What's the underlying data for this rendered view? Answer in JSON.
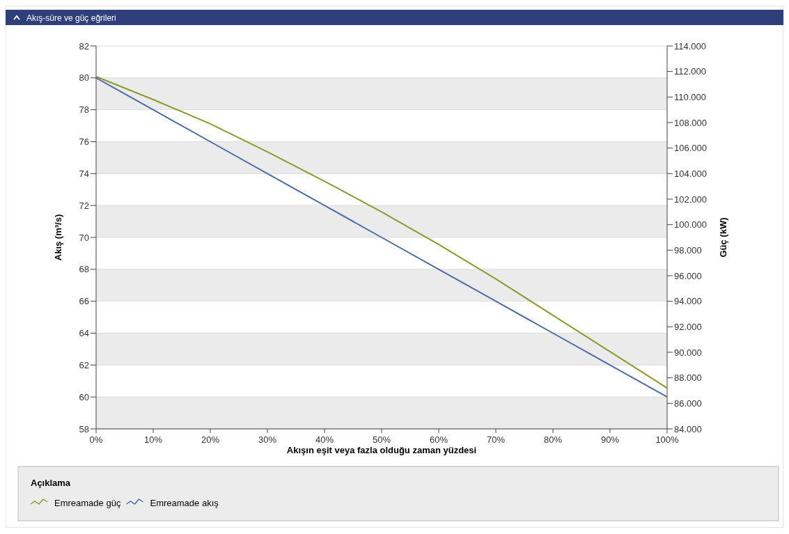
{
  "chart_data": {
    "type": "line",
    "title": "Akış-süre ve güç eğrileri",
    "xlabel": "Akışın eşit veya fazla olduğu zaman yüzdesi",
    "ylabel": "Akış (m³/s)",
    "y2label": "Güç (kW)",
    "legend_title": "Açıklama",
    "x": [
      0,
      10,
      20,
      30,
      40,
      50,
      60,
      70,
      80,
      90,
      100
    ],
    "series": [
      {
        "name": "Emreamade güç",
        "color": "#8a9a2e",
        "axis": "y2",
        "values": [
          111600,
          109800,
          107900,
          105700,
          103400,
          101000,
          98450,
          95750,
          92900,
          90050,
          87200
        ]
      },
      {
        "name": "Emreamade akış",
        "color": "#4a6ca8",
        "values": [
          80,
          78,
          76,
          74,
          72,
          70,
          68,
          66,
          64,
          62,
          60
        ]
      }
    ],
    "xlim": [
      0,
      100
    ],
    "xticks": [
      {
        "value": 0,
        "label": "0%"
      },
      {
        "value": 10,
        "label": "10%"
      },
      {
        "value": 20,
        "label": "20%"
      },
      {
        "value": 30,
        "label": "30%"
      },
      {
        "value": 40,
        "label": "40%"
      },
      {
        "value": 50,
        "label": "50%"
      },
      {
        "value": 60,
        "label": "60%"
      },
      {
        "value": 70,
        "label": "70%"
      },
      {
        "value": 80,
        "label": "80%"
      },
      {
        "value": 90,
        "label": "90%"
      },
      {
        "value": 100,
        "label": "100%"
      }
    ],
    "ylim": [
      58,
      82
    ],
    "yticks": [
      58,
      60,
      62,
      64,
      66,
      68,
      70,
      72,
      74,
      76,
      78,
      80,
      82
    ],
    "y2lim": [
      84000,
      114000
    ],
    "y2ticks": [
      {
        "value": 84000,
        "label": "84.000"
      },
      {
        "value": 86000,
        "label": "86.000"
      },
      {
        "value": 88000,
        "label": "88.000"
      },
      {
        "value": 90000,
        "label": "90.000"
      },
      {
        "value": 92000,
        "label": "92.000"
      },
      {
        "value": 94000,
        "label": "94.000"
      },
      {
        "value": 96000,
        "label": "96.000"
      },
      {
        "value": 98000,
        "label": "98.000"
      },
      {
        "value": 100000,
        "label": "100.000"
      },
      {
        "value": 102000,
        "label": "102.000"
      },
      {
        "value": 104000,
        "label": "104.000"
      },
      {
        "value": 106000,
        "label": "106.000"
      },
      {
        "value": 108000,
        "label": "108.000"
      },
      {
        "value": 110000,
        "label": "110.000"
      },
      {
        "value": 112000,
        "label": "112.000"
      },
      {
        "value": 114000,
        "label": "114.000"
      }
    ],
    "grid": "y",
    "legend": "bottom",
    "marker": "none",
    "line_style": "solid"
  }
}
